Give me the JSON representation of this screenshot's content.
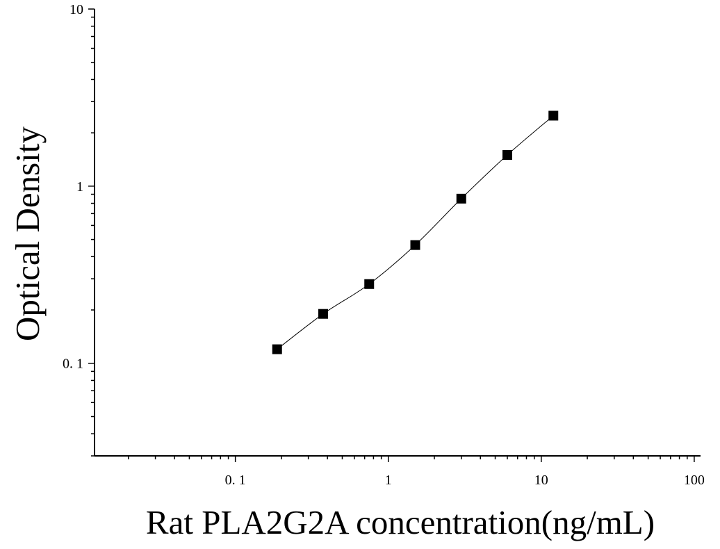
{
  "chart_data": {
    "type": "scatter",
    "xlabel": "Rat PLA2G2A concentration(ng/mL)",
    "ylabel": "Optical Density",
    "x_scale": "log",
    "y_scale": "log",
    "xlim": [
      0.012,
      110
    ],
    "ylim": [
      0.03,
      10
    ],
    "x_tick_labels": [
      {
        "value": 0.1,
        "label": "0. 1"
      },
      {
        "value": 1,
        "label": "1"
      },
      {
        "value": 10,
        "label": "10"
      },
      {
        "value": 100,
        "label": "100"
      }
    ],
    "y_tick_labels": [
      {
        "value": 0.1,
        "label": "0. 1"
      },
      {
        "value": 1,
        "label": "1"
      },
      {
        "value": 10,
        "label": "10"
      }
    ],
    "grid": false,
    "series": [
      {
        "marker": "square",
        "color": "#000000",
        "x": [
          0.1875,
          0.375,
          0.75,
          1.5,
          3,
          6,
          12
        ],
        "y": [
          0.12,
          0.19,
          0.28,
          0.465,
          0.85,
          1.5,
          2.5
        ],
        "fit_curve": true
      }
    ]
  }
}
